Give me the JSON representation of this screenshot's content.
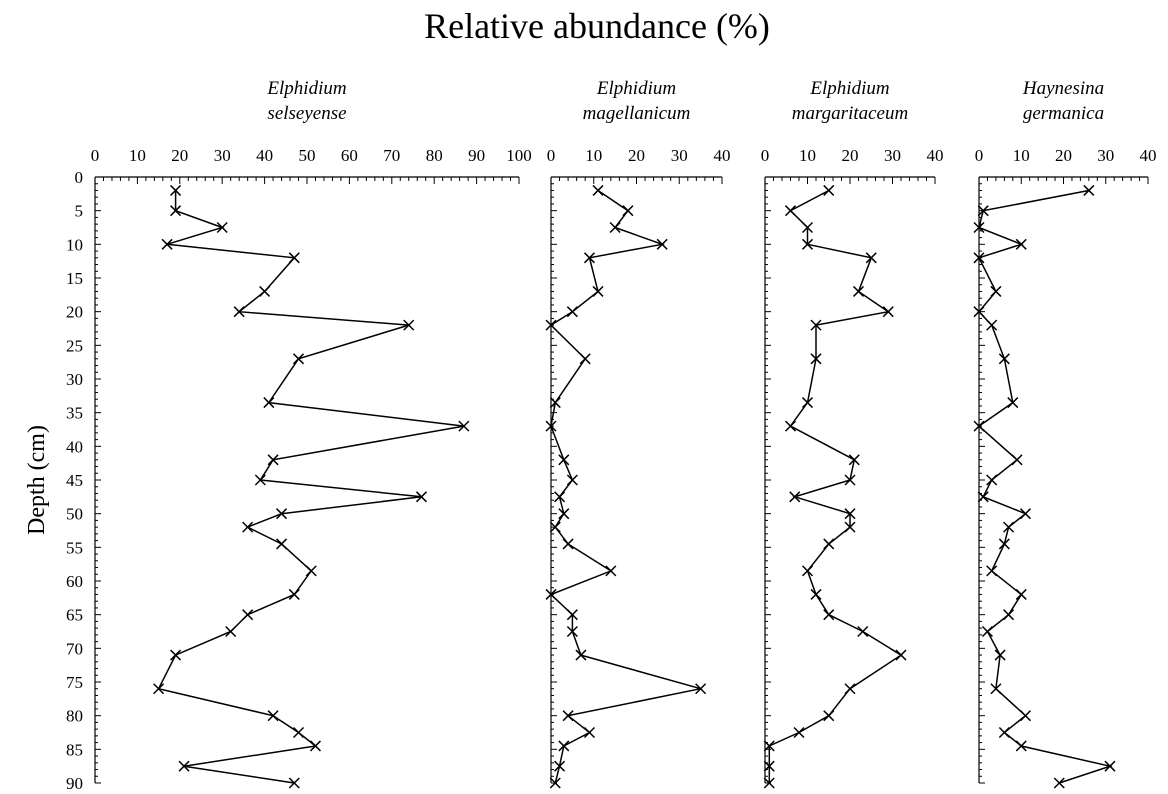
{
  "chart_data": {
    "type": "line",
    "title": "Relative abundance (%)",
    "ylabel": "Depth (cm)",
    "ylim": [
      0,
      90
    ],
    "y_ticks": [
      "0",
      "5",
      "10",
      "15",
      "20",
      "25",
      "30",
      "35",
      "40",
      "45",
      "50",
      "55",
      "60",
      "65",
      "70",
      "75",
      "80",
      "85",
      "90"
    ],
    "y_inverted": true,
    "depths": [
      2,
      5,
      7.5,
      10,
      12,
      17,
      20,
      22,
      27,
      33.5,
      37,
      42,
      45,
      47.5,
      50,
      52,
      54.5,
      58.5,
      62,
      65,
      67.5,
      71,
      76,
      80,
      82.5,
      84.5,
      87.5,
      90
    ],
    "panels": [
      {
        "name_line1": "Elphidium",
        "name_line2": "selseyense",
        "xlim": [
          0,
          100
        ],
        "x_ticks": [
          "0",
          "10",
          "20",
          "30",
          "40",
          "50",
          "60",
          "70",
          "80",
          "90",
          "100"
        ],
        "values": [
          19,
          19,
          30,
          17,
          47,
          40,
          34,
          74,
          48,
          41,
          87,
          42,
          39,
          77,
          44,
          36,
          44,
          51,
          47,
          36,
          32,
          19,
          15,
          42,
          48,
          52,
          21,
          47
        ]
      },
      {
        "name_line1": "Elphidium",
        "name_line2": "magellanicum",
        "xlim": [
          0,
          40
        ],
        "x_ticks": [
          "0",
          "10",
          "20",
          "30",
          "40"
        ],
        "values": [
          11,
          18,
          15,
          26,
          9,
          11,
          5,
          0,
          8,
          1,
          0,
          3,
          5,
          2,
          3,
          1,
          4,
          14,
          0,
          5,
          5,
          7,
          35,
          4,
          9,
          3,
          2,
          1
        ]
      },
      {
        "name_line1": "Elphidium",
        "name_line2": "margaritaceum",
        "xlim": [
          0,
          40
        ],
        "x_ticks": [
          "0",
          "10",
          "20",
          "30",
          "40"
        ],
        "values": [
          15,
          6,
          10,
          10,
          25,
          22,
          29,
          12,
          12,
          10,
          6,
          21,
          20,
          7,
          20,
          20,
          15,
          10,
          12,
          15,
          23,
          32,
          20,
          15,
          8,
          1,
          1,
          1
        ]
      },
      {
        "name_line1": "Haynesina",
        "name_line2": "germanica",
        "xlim": [
          0,
          40
        ],
        "x_ticks": [
          "0",
          "10",
          "20",
          "30",
          "40"
        ],
        "values": [
          26,
          1,
          0,
          10,
          0,
          4,
          0,
          3,
          6,
          8,
          0,
          9,
          3,
          1,
          11,
          7,
          6,
          3,
          10,
          7,
          2,
          5,
          4,
          11,
          6,
          10,
          31,
          19
        ]
      }
    ]
  }
}
